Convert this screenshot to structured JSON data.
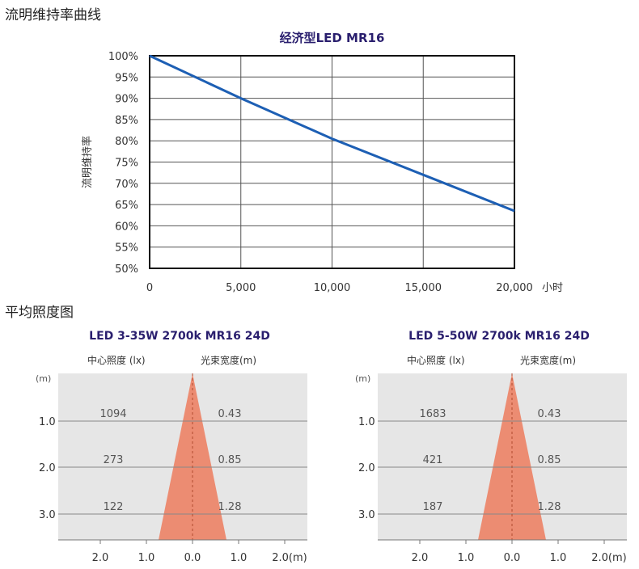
{
  "sections": {
    "maintenance_heading": "流明维持率曲线",
    "illuminance_heading": "平均照度图"
  },
  "chart_data": [
    {
      "type": "line",
      "title": "经济型LED MR16",
      "ylabel": "流明维持率",
      "x_unit": "小时",
      "x_ticks": [
        "0",
        "5,000",
        "10,000",
        "15,000",
        "20,000"
      ],
      "y_ticks": [
        "100%",
        "95%",
        "90%",
        "85%",
        "80%",
        "75%",
        "70%",
        "65%",
        "60%",
        "55%",
        "50%"
      ],
      "xlim": [
        0,
        20000
      ],
      "ylim": [
        50,
        100
      ],
      "grid": true,
      "series": [
        {
          "x": [
            0,
            5000,
            10000,
            15000,
            20000
          ],
          "y": [
            100,
            90,
            80.5,
            72,
            63.5
          ],
          "color": "#1d5fb4"
        }
      ]
    },
    {
      "type": "beam",
      "title": "LED 3-35W 2700k MR16 24D",
      "illuminance_header": "中心照度 (lx)",
      "beam_width_header": "光束宽度(m)",
      "distance_unit": "(m)",
      "distances": [
        "1.0",
        "2.0",
        "3.0"
      ],
      "illuminance": [
        "1094",
        "273",
        "122"
      ],
      "beam_width": [
        "0.43",
        "0.85",
        "1.28"
      ],
      "x_ticks": [
        "2.0",
        "1.0",
        "0.0",
        "1.0",
        "2.0(m)"
      ],
      "beam_color": "#ec8c72"
    },
    {
      "type": "beam",
      "title": "LED 5-50W 2700k MR16 24D",
      "illuminance_header": "中心照度 (lx)",
      "beam_width_header": "光束宽度(m)",
      "distance_unit": "(m)",
      "distances": [
        "1.0",
        "2.0",
        "3.0"
      ],
      "illuminance": [
        "1683",
        "421",
        "187"
      ],
      "beam_width": [
        "0.43",
        "0.85",
        "1.28"
      ],
      "x_ticks": [
        "2.0",
        "1.0",
        "0.0",
        "1.0",
        "2.0(m)"
      ],
      "beam_color": "#ec8c72"
    }
  ]
}
